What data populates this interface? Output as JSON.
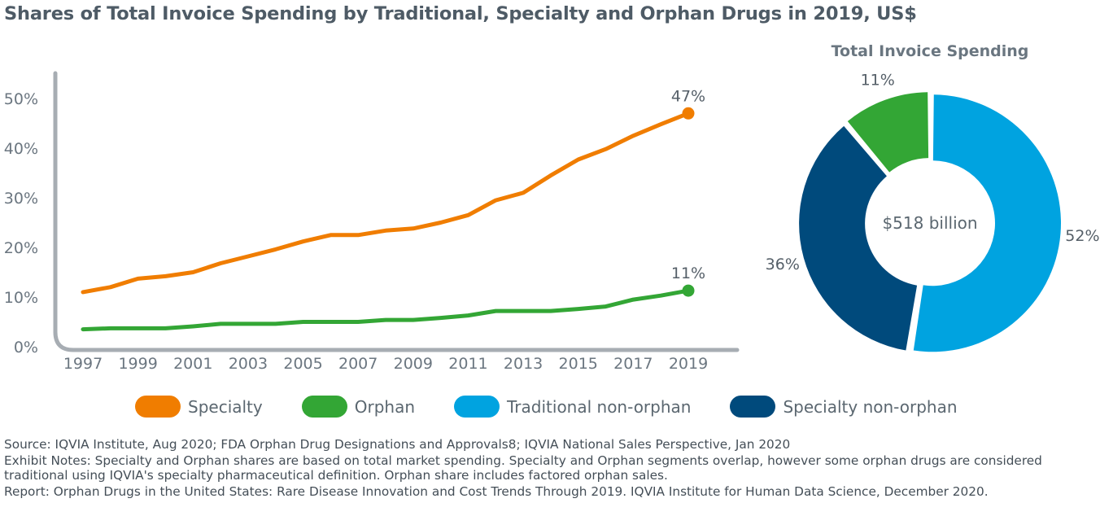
{
  "title": "Shares of Total Invoice Spending by Traditional, Specialty and Orphan Drugs in 2019, US$",
  "chart_data": [
    {
      "type": "line",
      "title": "",
      "xlabel": "",
      "ylabel": "",
      "x": [
        1997,
        1998,
        1999,
        2000,
        2001,
        2002,
        2003,
        2004,
        2005,
        2006,
        2007,
        2008,
        2009,
        2010,
        2011,
        2012,
        2013,
        2014,
        2015,
        2016,
        2017,
        2018,
        2019
      ],
      "x_tick_labels": [
        "1997",
        "1999",
        "2001",
        "2003",
        "2005",
        "2007",
        "2009",
        "2011",
        "2013",
        "2015",
        "2017",
        "2019"
      ],
      "y_tick_labels": [
        "0%",
        "10%",
        "20%",
        "30%",
        "40%",
        "50%"
      ],
      "ylim": [
        0,
        50
      ],
      "grid": false,
      "series": [
        {
          "name": "Specialty",
          "color": "#f07d00",
          "values": [
            11,
            12,
            13.7,
            14.2,
            15,
            16.8,
            18.2,
            19.6,
            21.2,
            22.5,
            22.5,
            23.4,
            23.8,
            25,
            26.5,
            29.5,
            31,
            34.5,
            37.7,
            39.8,
            42.5,
            44.8,
            47
          ],
          "end_label": "47%"
        },
        {
          "name": "Orphan",
          "color": "#33a635",
          "values": [
            3.5,
            3.7,
            3.7,
            3.7,
            4.1,
            4.6,
            4.6,
            4.6,
            5,
            5,
            5,
            5.4,
            5.4,
            5.8,
            6.3,
            7.2,
            7.2,
            7.2,
            7.6,
            8.1,
            9.5,
            10.3,
            11.3
          ],
          "end_label": "11%"
        }
      ]
    },
    {
      "type": "pie",
      "title": "Total Invoice Spending",
      "center_label": "$518 billion",
      "categories": [
        "Traditional non-orphan",
        "Specialty non-orphan",
        "Orphan"
      ],
      "values": [
        52,
        36,
        11
      ],
      "labels": [
        "52%",
        "36%",
        "11%"
      ],
      "colors": [
        "#00a3e0",
        "#004a7c",
        "#33a635"
      ]
    }
  ],
  "legend": [
    {
      "label": "Specialty",
      "color": "#f07d00"
    },
    {
      "label": "Orphan",
      "color": "#33a635"
    },
    {
      "label": "Traditional non-orphan",
      "color": "#00a3e0"
    },
    {
      "label": "Specialty non-orphan",
      "color": "#004a7c"
    }
  ],
  "notes": {
    "source": "Source: IQVIA Institute, Aug 2020; FDA Orphan Drug Designations and Approvals8; IQVIA National Sales Perspective, Jan 2020",
    "exhibit": "Exhibit Notes: Specialty and Orphan shares are based on total market spending. Specialty and Orphan segments overlap, however some orphan drugs are considered traditional using IQVIA's specialty pharmaceutical definition. Orphan share includes factored orphan sales.",
    "report": "Report: Orphan Drugs in the United States: Rare Disease Innovation and Cost Trends Through 2019. IQVIA Institute for Human Data Science, December 2020."
  }
}
